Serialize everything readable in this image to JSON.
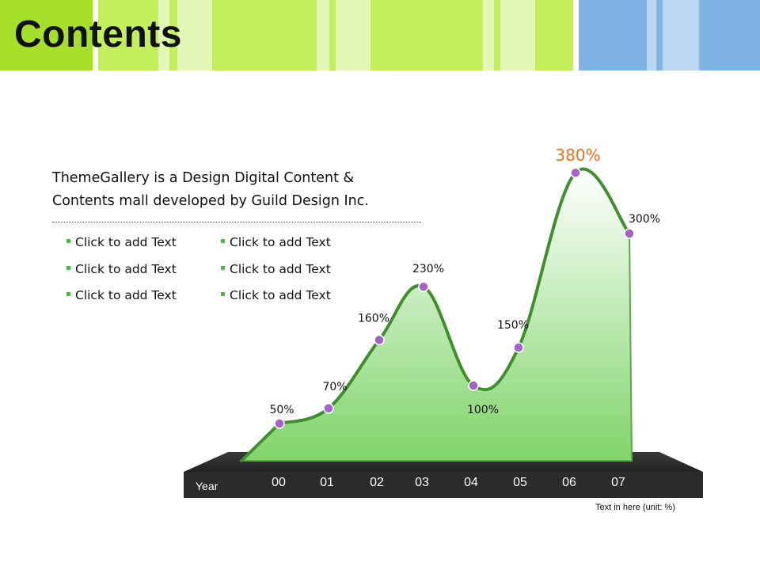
{
  "header": {
    "title": "Contents",
    "colors": {
      "lime": "#c4ef5c",
      "lime_light": "#e2f7b6",
      "bright": "#a7e02a",
      "blue": "#7fb3e3",
      "blue_light": "#bcd7f2"
    }
  },
  "description": {
    "line1": "ThemeGallery  is a Design Digital Content &",
    "line2": "Contents mall developed by Guild Design Inc."
  },
  "bullets": {
    "col1": [
      "Click to add Text",
      "Click to add Text",
      "Click to add Text"
    ],
    "col2": [
      "Click to add Text",
      "Click to add Text",
      "Click to add Text"
    ]
  },
  "footnote": "Text in here  (unit: %)",
  "chart_data": {
    "type": "area",
    "xlabel": "Year",
    "categories": [
      "00",
      "01",
      "02",
      "03",
      "04",
      "05",
      "06",
      "07"
    ],
    "values": [
      50,
      70,
      160,
      230,
      100,
      150,
      380,
      300
    ],
    "data_labels": [
      "50%",
      "70%",
      "160%",
      "230%",
      "100%",
      "150%",
      "380%",
      "300%"
    ],
    "highlight_label": "380%",
    "colors": {
      "fill_top": "#ffffff",
      "fill_bottom": "#7fd46a",
      "line": "#3f8f2f",
      "point": "#a463c9",
      "highlight": "#e8731c",
      "base": "#2b2b2b"
    }
  }
}
